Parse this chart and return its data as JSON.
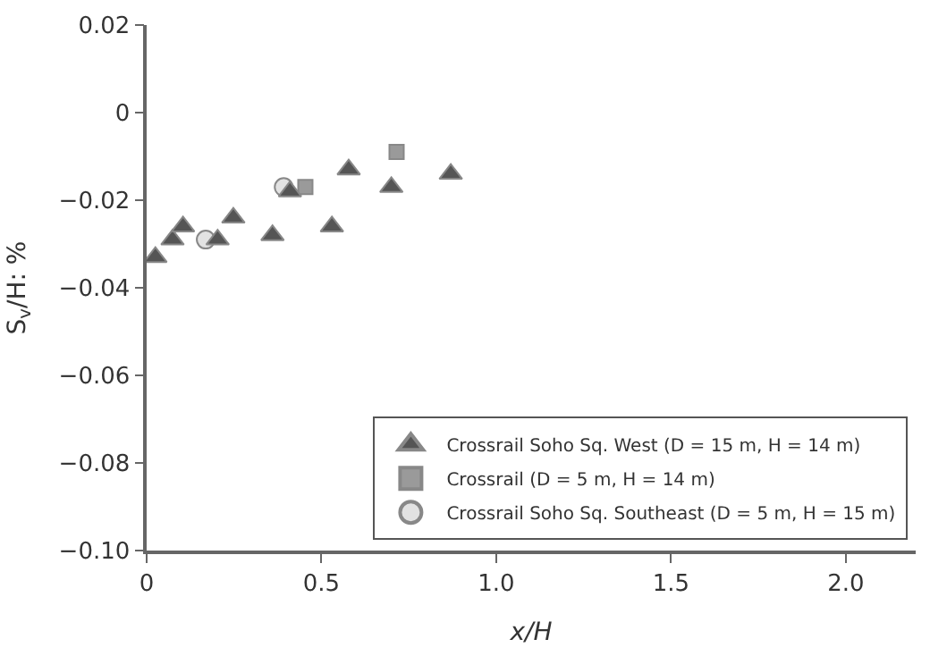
{
  "chart_data": {
    "type": "scatter",
    "xlabel": "x/H",
    "ylabel": "S$_{v}$/H: %",
    "xlim": [
      0,
      2.2
    ],
    "ylim": [
      -0.1,
      0.02
    ],
    "xticks": [
      0,
      0.5,
      {
        "value": 1.0,
        "label": "1.0"
      },
      1.5,
      {
        "value": 2.0,
        "label": "2.0"
      }
    ],
    "yticks": [
      {
        "value": -0.1,
        "label": "−0.10"
      },
      {
        "value": -0.08,
        "label": "−0.08"
      },
      {
        "value": -0.06,
        "label": "−0.06"
      },
      {
        "value": -0.04,
        "label": "−0.04"
      },
      {
        "value": -0.02,
        "label": "−0.02"
      },
      0,
      0.02
    ],
    "legend": "bottom right",
    "series": [
      {
        "name": "Crossrail Soho Sq. West (D = 15 m, H = 14 m)",
        "color": "#555555",
        "marker": "triangle",
        "x": [
          0.025,
          0.074,
          0.104,
          0.203,
          0.248,
          0.36,
          0.41,
          0.53,
          0.578,
          0.7,
          0.87
        ],
        "values": [
          -0.033,
          -0.029,
          -0.026,
          -0.029,
          -0.024,
          -0.028,
          -0.018,
          -0.026,
          -0.013,
          -0.017,
          -0.014
        ]
      },
      {
        "name": "Crossrail (D = 5 m, H = 14 m)",
        "color": "#9a9a9a",
        "marker": "square",
        "x": [
          0.454,
          0.715
        ],
        "values": [
          -0.017,
          -0.009
        ]
      },
      {
        "name": "Crossrail Soho Sq. Southeast (D = 5 m, H = 15 m)",
        "color": "#e2e2e2",
        "marker": "circle",
        "x": [
          0.169,
          0.392
        ],
        "values": [
          -0.029,
          -0.017
        ]
      }
    ]
  }
}
